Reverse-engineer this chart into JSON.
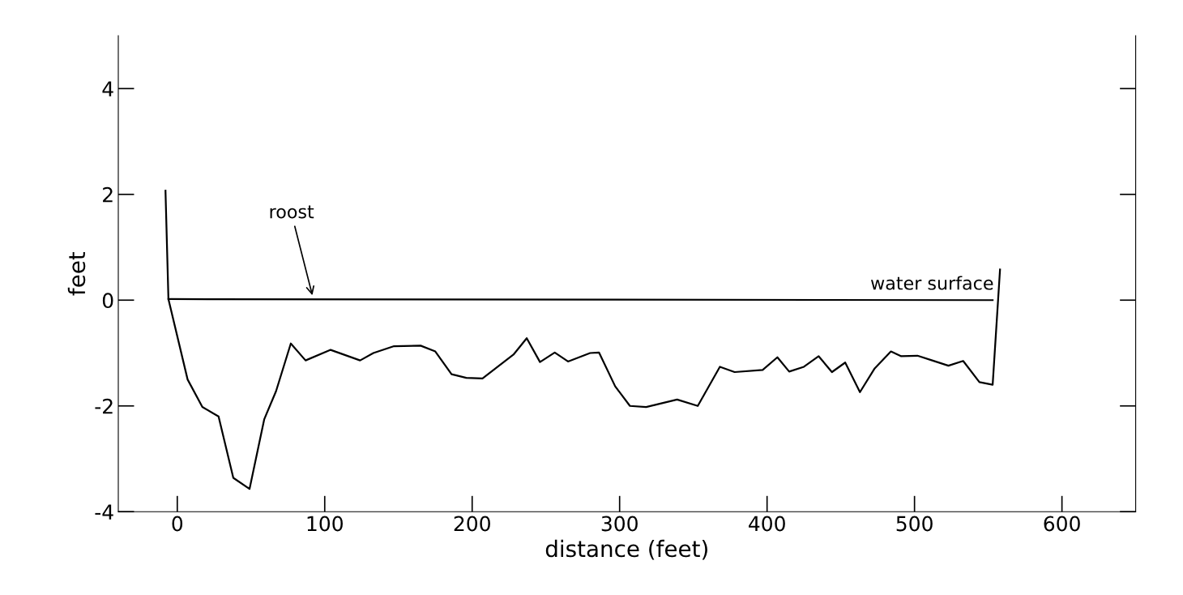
{
  "chart_data": {
    "type": "line",
    "xlabel": "distance (feet)",
    "ylabel": "feet",
    "xlim": [
      -40,
      650
    ],
    "xticks": [
      0,
      100,
      200,
      300,
      400,
      500,
      600
    ],
    "ylim": [
      -4,
      5
    ],
    "yticks": [
      -4,
      -2,
      0,
      2,
      4
    ],
    "grid": false,
    "legend": false,
    "marker": "none",
    "line_style": "solid",
    "series": [
      {
        "color": "#000000",
        "x": [
          -8,
          -6,
          7,
          17,
          28,
          38,
          49,
          59,
          67,
          77,
          87,
          104,
          124,
          133,
          147,
          165,
          175,
          186,
          196,
          207,
          228,
          237,
          246,
          256,
          265,
          280,
          286,
          297,
          307,
          318,
          339,
          353,
          368,
          378,
          397,
          407,
          415,
          425,
          435,
          444,
          453,
          463,
          473,
          484,
          491,
          502,
          512,
          523,
          533,
          544,
          553,
          558
        ],
        "values": [
          2.07,
          0.02,
          -1.5,
          -2.02,
          -2.2,
          -3.36,
          -3.57,
          -2.25,
          -1.72,
          -0.82,
          -1.14,
          -0.94,
          -1.14,
          -1.0,
          -0.87,
          -0.86,
          -0.97,
          -1.4,
          -1.47,
          -1.48,
          -1.03,
          -0.72,
          -1.17,
          -0.99,
          -1.16,
          -1.0,
          -0.99,
          -1.63,
          -2.0,
          -2.02,
          -1.88,
          -2.0,
          -1.26,
          -1.36,
          -1.32,
          -1.08,
          -1.35,
          -1.26,
          -1.06,
          -1.36,
          -1.18,
          -1.74,
          -1.29,
          -0.97,
          -1.06,
          -1.05,
          -1.14,
          -1.24,
          -1.15,
          -1.55,
          -1.6,
          0.58
        ]
      },
      {
        "color": "#000000",
        "x": [
          -6,
          553
        ],
        "values": [
          0.02,
          0.0
        ]
      }
    ],
    "annotations": [
      {
        "text": "roost",
        "x": 92,
        "y": 0.05
      },
      {
        "text": "water surface",
        "x": 470,
        "y": 0.0
      }
    ]
  }
}
